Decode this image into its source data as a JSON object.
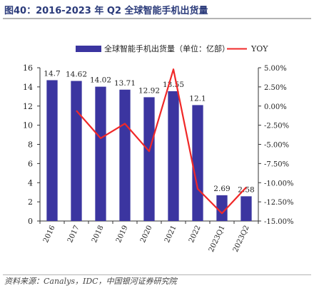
{
  "header": {
    "title": "图40：2016-2023 年 Q2 全球智能手机出货量"
  },
  "footer": {
    "source": "资料来源：Canalys，IDC，中国银河证券研究院"
  },
  "chart_data": {
    "type": "bar",
    "categories": [
      "2016",
      "2017",
      "2018",
      "2019",
      "2020",
      "2021",
      "2022",
      "2023Q1",
      "2023Q2"
    ],
    "series": [
      {
        "name": "全球智能手机出货量（单位：亿部）",
        "type": "bar",
        "axis": "left",
        "color": "#3b35a0",
        "values": [
          14.7,
          14.62,
          14.02,
          13.71,
          12.92,
          13.55,
          12.1,
          2.69,
          2.58
        ],
        "labels": [
          "14.7",
          "14.62",
          "14.02",
          "13.71",
          "12.92",
          "13.55",
          "12.1",
          "2.69",
          "2.58"
        ]
      },
      {
        "name": "YOY",
        "type": "line",
        "axis": "right",
        "color": "#f02828",
        "values": [
          null,
          -0.6,
          -4.2,
          -2.3,
          -5.9,
          4.8,
          -10.8,
          -14.0,
          -10.6
        ]
      }
    ],
    "y_left": {
      "min": 0,
      "max": 16,
      "step": 2,
      "ticks": [
        "0",
        "2",
        "4",
        "6",
        "8",
        "10",
        "12",
        "14",
        "16"
      ]
    },
    "y_right": {
      "min": -15,
      "max": 5,
      "step": 2.5,
      "ticks": [
        "-15.00%",
        "-12.50%",
        "-10.00%",
        "-7.50%",
        "-5.00%",
        "-2.50%",
        "0.00%",
        "2.50%",
        "5.00%"
      ]
    },
    "legend": "top",
    "grid": false
  }
}
